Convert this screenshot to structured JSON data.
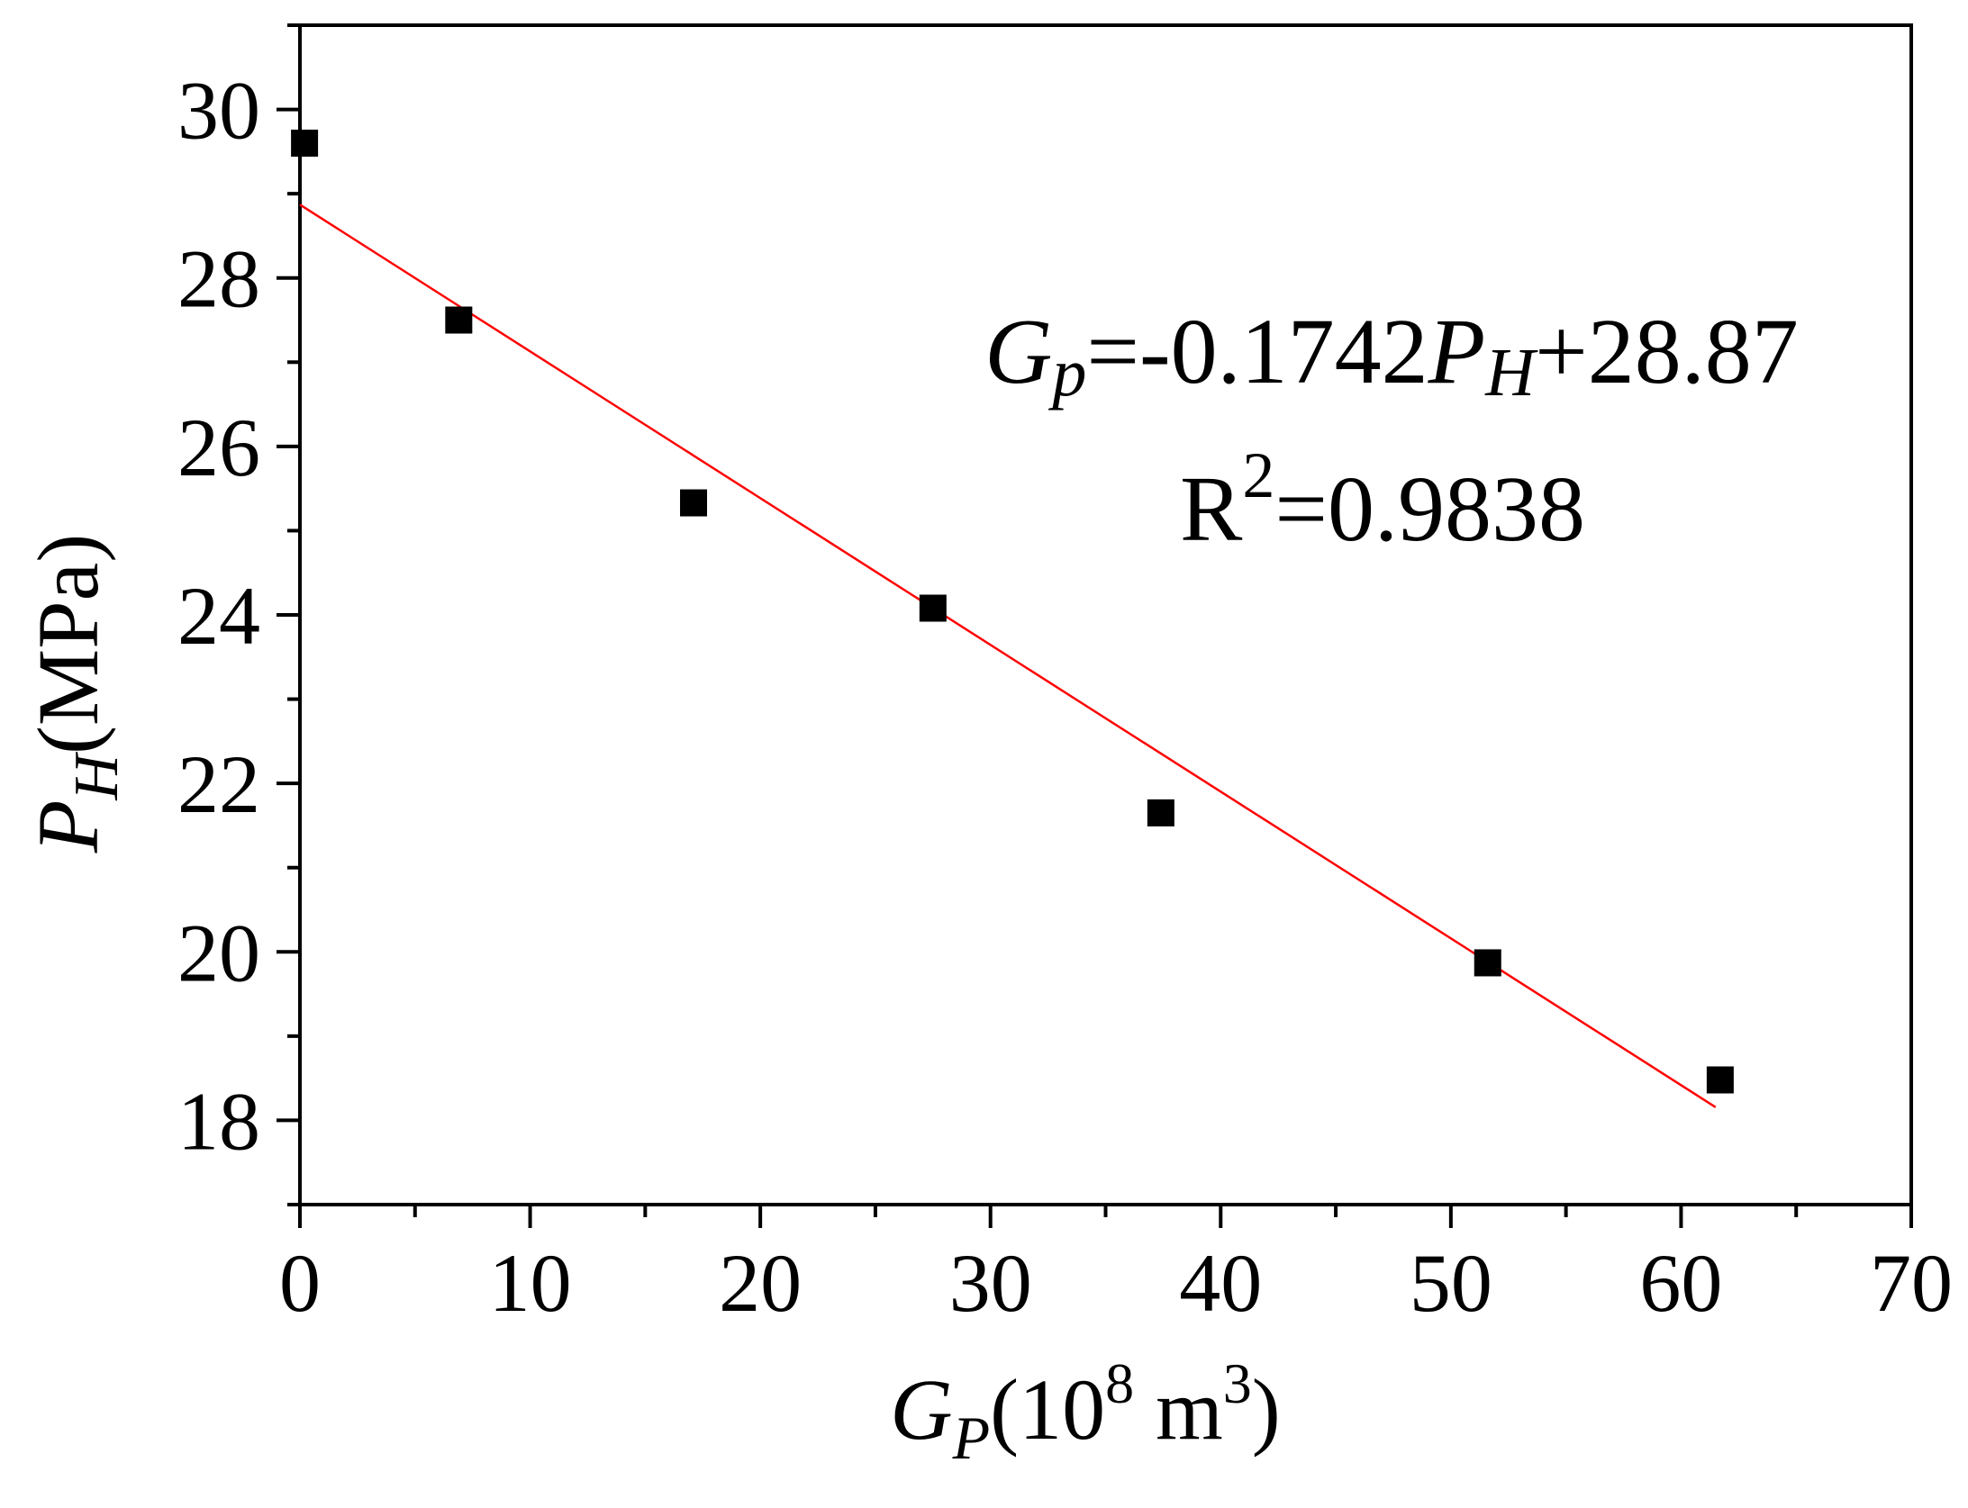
{
  "chart_data": {
    "type": "scatter",
    "x_axis": {
      "label_main": "G",
      "label_sub": "P",
      "label_paren_open": "(10",
      "label_exp": "8",
      "label_unit": " m",
      "label_unit_exp": "3",
      "label_paren_close": ")",
      "range": [
        0,
        70
      ],
      "ticks": [
        0,
        10,
        20,
        30,
        40,
        50,
        60,
        70
      ],
      "tick_labels": [
        "0",
        "10",
        "20",
        "30",
        "40",
        "50",
        "60",
        "70"
      ],
      "minor_step": 5
    },
    "y_axis": {
      "label_main": "P",
      "label_sub": "H",
      "label_unit": "(MPa)",
      "range": [
        17,
        31
      ],
      "ticks": [
        18,
        20,
        22,
        24,
        26,
        28,
        30
      ],
      "tick_labels": [
        "18",
        "20",
        "22",
        "24",
        "26",
        "28",
        "30"
      ],
      "minor_step": 1
    },
    "series": [
      {
        "points": [
          {
            "x": 0.2,
            "y": 29.6
          },
          {
            "x": 6.9,
            "y": 27.5
          },
          {
            "x": 17.1,
            "y": 25.33
          },
          {
            "x": 27.5,
            "y": 24.08
          },
          {
            "x": 37.4,
            "y": 21.65
          },
          {
            "x": 51.6,
            "y": 19.87
          },
          {
            "x": 61.7,
            "y": 18.48
          }
        ],
        "color": "#000000",
        "marker": "square"
      }
    ],
    "fit": {
      "slope": -0.1742,
      "intercept": 28.87,
      "x_range": [
        0,
        61.5
      ],
      "color": "#ff0000"
    },
    "annotation": {
      "eq_g": "G",
      "eq_g_sub": "p",
      "eq_part1": "=-0.1742",
      "eq_p": "P",
      "eq_p_sub": "H",
      "eq_part2": "+28.87",
      "r2_r": "R",
      "r2_exp": "2",
      "r2_value": "=0.9838"
    },
    "grid": false,
    "legend": "none"
  }
}
